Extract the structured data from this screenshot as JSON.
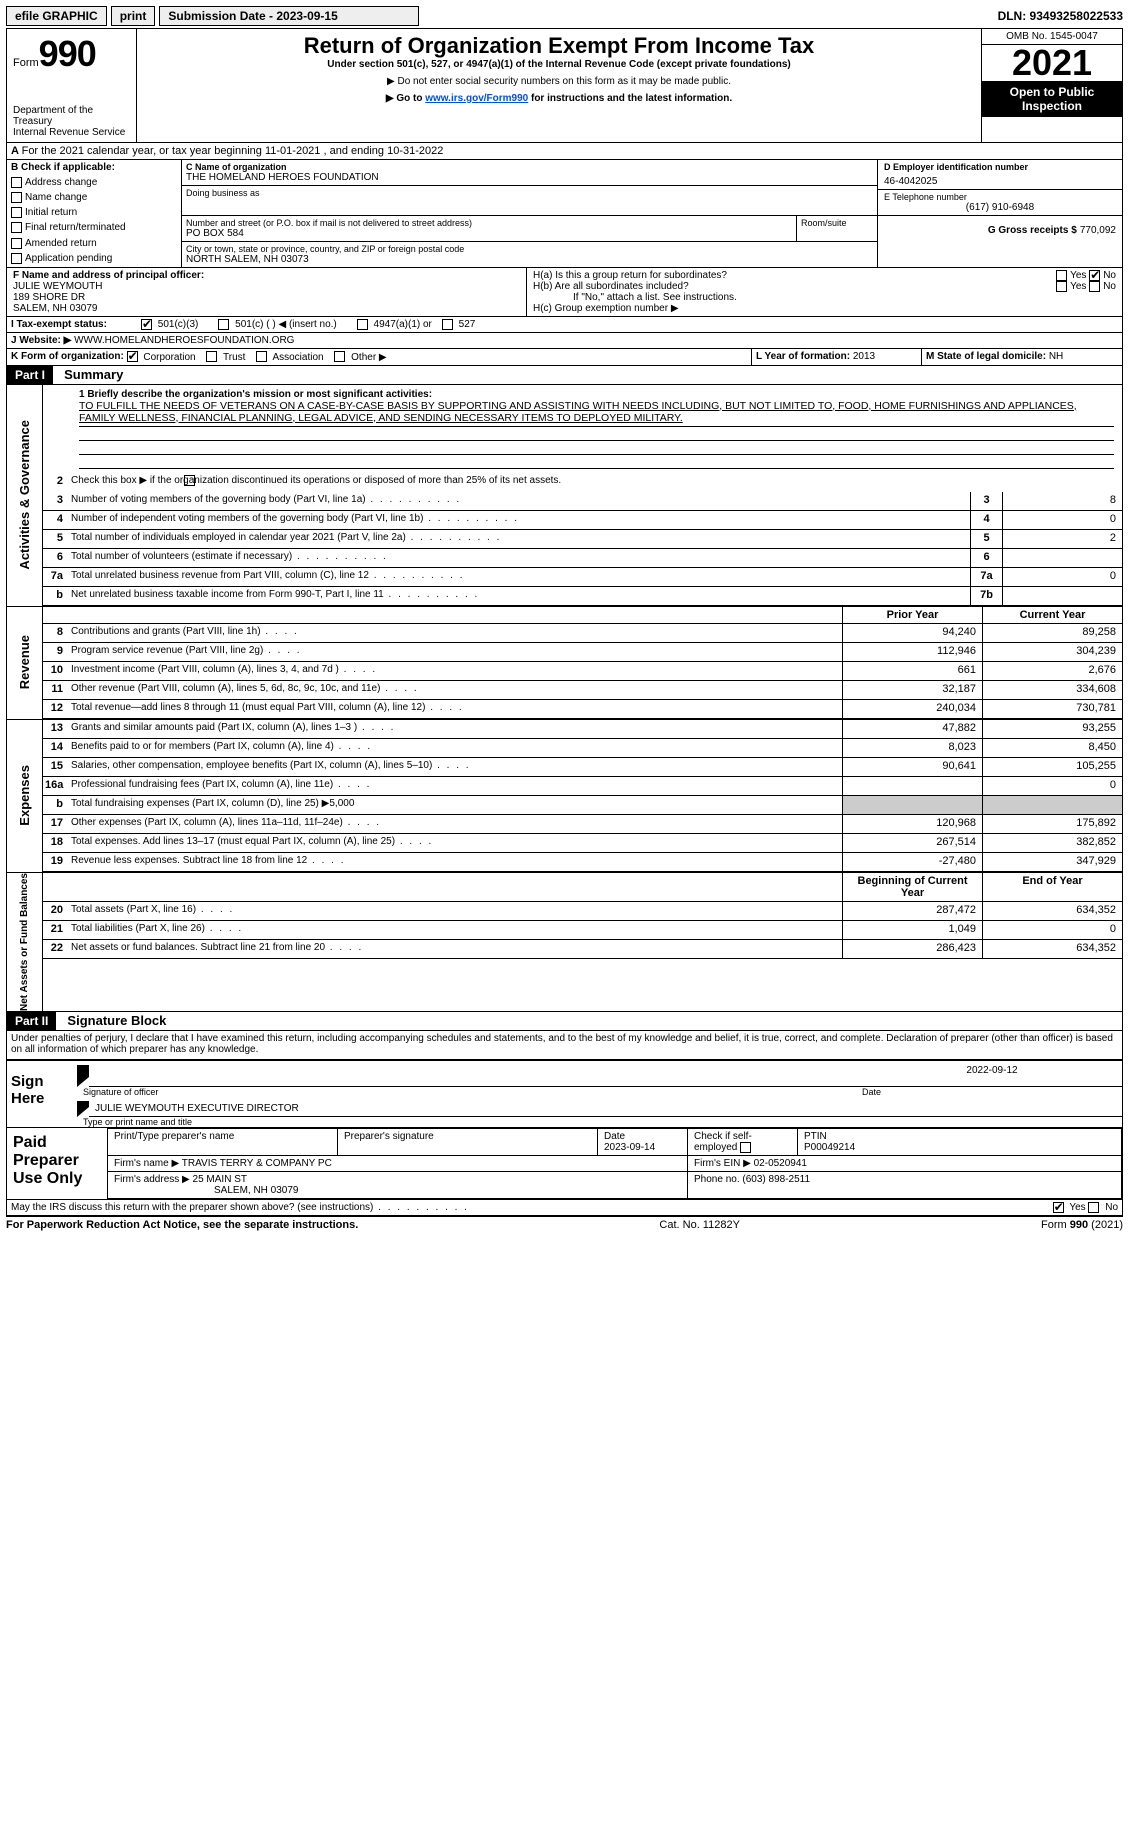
{
  "topbar": {
    "efile": "efile GRAPHIC",
    "print": "print",
    "submission": "Submission Date - 2023-09-15",
    "dln": "DLN: 93493258022533"
  },
  "header": {
    "form_word": "Form",
    "form_num": "990",
    "title": "Return of Organization Exempt From Income Tax",
    "subtitle": "Under section 501(c), 527, or 4947(a)(1) of the Internal Revenue Code (except private foundations)",
    "note1": "▶ Do not enter social security numbers on this form as it may be made public.",
    "note2": "▶ Go to ",
    "note2_link": "www.irs.gov/Form990",
    "note2_tail": " for instructions and the latest information.",
    "dept": "Department of the Treasury",
    "irs": "Internal Revenue Service",
    "omb": "OMB No. 1545-0047",
    "year": "2021",
    "open": "Open to Public Inspection"
  },
  "line_a": "For the 2021 calendar year, or tax year beginning 11-01-2021    , and ending 10-31-2022",
  "section_b": {
    "heading": "B Check if applicable:",
    "items": [
      "Address change",
      "Name change",
      "Initial return",
      "Final return/terminated",
      "Amended return",
      "Application pending"
    ]
  },
  "section_c": {
    "name_lbl": "C Name of organization",
    "name": "THE HOMELAND HEROES FOUNDATION",
    "dba_lbl": "Doing business as",
    "dba": "",
    "street_lbl": "Number and street (or P.O. box if mail is not delivered to street address)",
    "room_lbl": "Room/suite",
    "street": "PO BOX 584",
    "city_lbl": "City or town, state or province, country, and ZIP or foreign postal code",
    "city": "NORTH SALEM, NH  03073"
  },
  "section_d": {
    "lbl": "D Employer identification number",
    "val": "46-4042025"
  },
  "section_e": {
    "lbl": "E Telephone number",
    "val": "(617) 910-6948"
  },
  "section_g": {
    "lbl": "G Gross receipts $",
    "val": "770,092"
  },
  "section_f": {
    "lbl": "F  Name and address of principal officer:",
    "l1": "JULIE WEYMOUTH",
    "l2": "189 SHORE DR",
    "l3": "SALEM, NH  03079"
  },
  "section_h": {
    "ha": "H(a)  Is this a group return for subordinates?",
    "hb": "H(b)  Are all subordinates included?",
    "hb_note": "If \"No,\" attach a list. See instructions.",
    "hc": "H(c)  Group exemption number ▶",
    "yes": "Yes",
    "no": "No"
  },
  "section_i": {
    "lbl": "I   Tax-exempt status:",
    "o1": "501(c)(3)",
    "o2": "501(c) (  ) ◀ (insert no.)",
    "o3": "4947(a)(1) or",
    "o4": "527"
  },
  "section_j": {
    "lbl": "J   Website: ▶",
    "val": "WWW.HOMELANDHEROESFOUNDATION.ORG"
  },
  "section_k": {
    "lbl": "K Form of organization:",
    "o1": "Corporation",
    "o2": "Trust",
    "o3": "Association",
    "o4": "Other ▶"
  },
  "section_l": {
    "lbl": "L Year of formation:",
    "val": "2013"
  },
  "section_m": {
    "lbl": "M State of legal domicile:",
    "val": "NH"
  },
  "part1": {
    "hdr": "Part I",
    "title": "Summary"
  },
  "mission_lbl": "1  Briefly describe the organization's mission or most significant activities:",
  "mission": "TO FULFILL THE NEEDS OF VETERANS ON A CASE-BY-CASE BASIS BY SUPPORTING AND ASSISTING WITH NEEDS INCLUDING, BUT NOT LIMITED TO, FOOD, HOME FURNISHINGS AND APPLIANCES, FAMILY WELLNESS, FINANCIAL PLANNING, LEGAL ADVICE, AND SENDING NECESSARY ITEMS TO DEPLOYED MILITARY.",
  "line2": "Check this box ▶        if the organization discontinued its operations or disposed of more than 25% of its net assets.",
  "vtabs": {
    "ag": "Activities & Governance",
    "rev": "Revenue",
    "exp": "Expenses",
    "net": "Net Assets or Fund Balances"
  },
  "ag_rows": [
    {
      "n": "3",
      "lbl": "Number of voting members of the governing body (Part VI, line 1a)",
      "box": "3",
      "val": "8"
    },
    {
      "n": "4",
      "lbl": "Number of independent voting members of the governing body (Part VI, line 1b)",
      "box": "4",
      "val": "0"
    },
    {
      "n": "5",
      "lbl": "Total number of individuals employed in calendar year 2021 (Part V, line 2a)",
      "box": "5",
      "val": "2"
    },
    {
      "n": "6",
      "lbl": "Total number of volunteers (estimate if necessary)",
      "box": "6",
      "val": ""
    },
    {
      "n": "7a",
      "lbl": "Total unrelated business revenue from Part VIII, column (C), line 12",
      "box": "7a",
      "val": "0"
    },
    {
      "n": "b",
      "lbl": "Net unrelated business taxable income from Form 990-T, Part I, line 11",
      "box": "7b",
      "val": ""
    }
  ],
  "col_hdr": {
    "prior": "Prior Year",
    "current": "Current Year",
    "boy": "Beginning of Current Year",
    "eoy": "End of Year"
  },
  "rev_rows": [
    {
      "n": "8",
      "lbl": "Contributions and grants (Part VIII, line 1h)",
      "p": "94,240",
      "c": "89,258"
    },
    {
      "n": "9",
      "lbl": "Program service revenue (Part VIII, line 2g)",
      "p": "112,946",
      "c": "304,239"
    },
    {
      "n": "10",
      "lbl": "Investment income (Part VIII, column (A), lines 3, 4, and 7d )",
      "p": "661",
      "c": "2,676"
    },
    {
      "n": "11",
      "lbl": "Other revenue (Part VIII, column (A), lines 5, 6d, 8c, 9c, 10c, and 11e)",
      "p": "32,187",
      "c": "334,608"
    },
    {
      "n": "12",
      "lbl": "Total revenue—add lines 8 through 11 (must equal Part VIII, column (A), line 12)",
      "p": "240,034",
      "c": "730,781"
    }
  ],
  "exp_rows": [
    {
      "n": "13",
      "lbl": "Grants and similar amounts paid (Part IX, column (A), lines 1–3 )",
      "p": "47,882",
      "c": "93,255"
    },
    {
      "n": "14",
      "lbl": "Benefits paid to or for members (Part IX, column (A), line 4)",
      "p": "8,023",
      "c": "8,450"
    },
    {
      "n": "15",
      "lbl": "Salaries, other compensation, employee benefits (Part IX, column (A), lines 5–10)",
      "p": "90,641",
      "c": "105,255"
    },
    {
      "n": "16a",
      "lbl": "Professional fundraising fees (Part IX, column (A), line 11e)",
      "p": "",
      "c": "0"
    }
  ],
  "line16b": {
    "n": "b",
    "lbl": "Total fundraising expenses (Part IX, column (D), line 25) ▶",
    "val": "5,000"
  },
  "exp_rows2": [
    {
      "n": "17",
      "lbl": "Other expenses (Part IX, column (A), lines 11a–11d, 11f–24e)",
      "p": "120,968",
      "c": "175,892"
    },
    {
      "n": "18",
      "lbl": "Total expenses. Add lines 13–17 (must equal Part IX, column (A), line 25)",
      "p": "267,514",
      "c": "382,852"
    },
    {
      "n": "19",
      "lbl": "Revenue less expenses. Subtract line 18 from line 12",
      "p": "-27,480",
      "c": "347,929"
    }
  ],
  "net_rows": [
    {
      "n": "20",
      "lbl": "Total assets (Part X, line 16)",
      "p": "287,472",
      "c": "634,352"
    },
    {
      "n": "21",
      "lbl": "Total liabilities (Part X, line 26)",
      "p": "1,049",
      "c": "0"
    },
    {
      "n": "22",
      "lbl": "Net assets or fund balances. Subtract line 21 from line 20",
      "p": "286,423",
      "c": "634,352"
    }
  ],
  "part2": {
    "hdr": "Part II",
    "title": "Signature Block"
  },
  "part2_text": "Under penalties of perjury, I declare that I have examined this return, including accompanying schedules and statements, and to the best of my knowledge and belief, it is true, correct, and complete. Declaration of preparer (other than officer) is based on all information of which preparer has any knowledge.",
  "sign": {
    "here": "Sign Here",
    "sig_lbl": "Signature of officer",
    "date_lbl": "Date",
    "date": "2022-09-12",
    "name": "JULIE WEYMOUTH  EXECUTIVE DIRECTOR",
    "name_lbl": "Type or print name and title"
  },
  "paid": {
    "lbl": "Paid Preparer Use Only",
    "h1": "Print/Type preparer's name",
    "h2": "Preparer's signature",
    "h3": "Date",
    "h3v": "2023-09-14",
    "h4": "Check         if self-employed",
    "h5": "PTIN",
    "h5v": "P00049214",
    "firm_lbl": "Firm's name    ▶",
    "firm": "TRAVIS TERRY & COMPANY PC",
    "ein_lbl": "Firm's EIN ▶",
    "ein": "02-0520941",
    "addr_lbl": "Firm's address ▶",
    "addr1": "25 MAIN ST",
    "addr2": "SALEM, NH  03079",
    "phone_lbl": "Phone no.",
    "phone": "(603) 898-2511"
  },
  "may_irs": "May the IRS discuss this return with the preparer shown above? (see instructions)",
  "footer": {
    "l": "For Paperwork Reduction Act Notice, see the separate instructions.",
    "m": "Cat. No. 11282Y",
    "r": "Form 990 (2021)"
  }
}
